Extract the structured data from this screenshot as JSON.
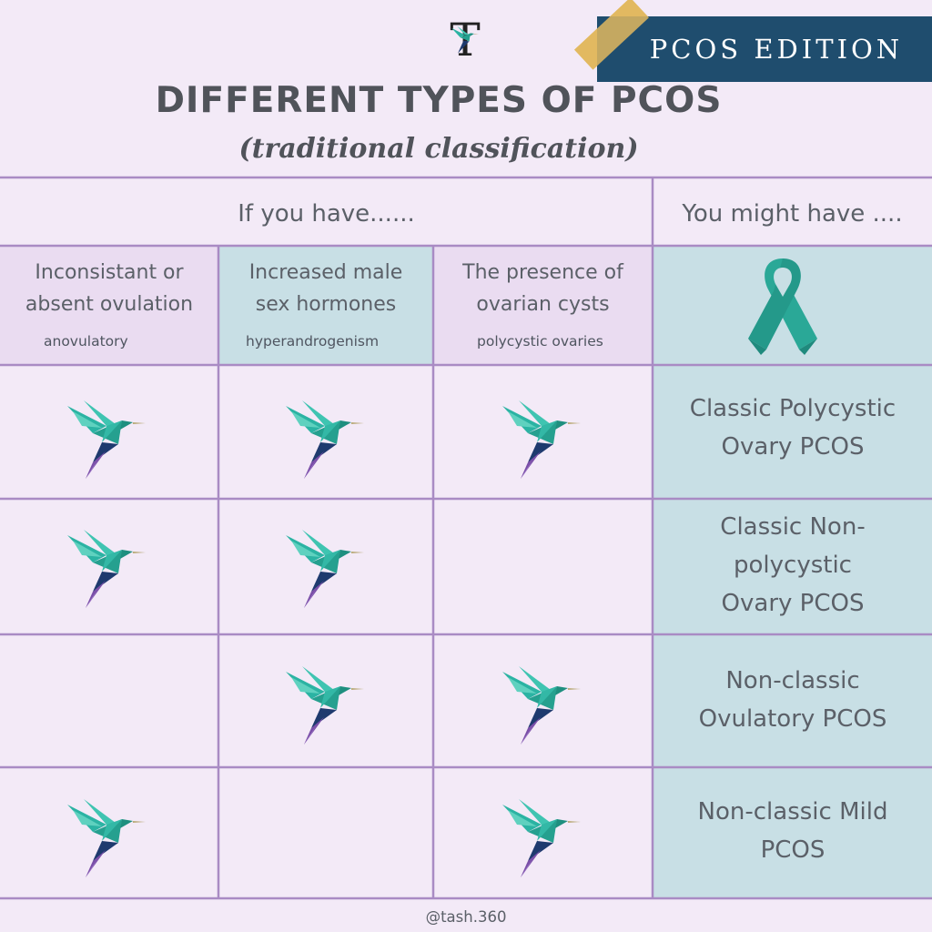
{
  "header": {
    "logo_letter": "T",
    "badge": "PCOS EDITION",
    "title": "DIFFERENT TYPES OF PCOS",
    "subtitle": "(traditional classification)"
  },
  "table": {
    "left_header": "If you have......",
    "right_header": "You might have ....",
    "columns": [
      {
        "line1": "Inconsistant or",
        "line2": "absent ovulation",
        "sub": "anovulatory"
      },
      {
        "line1": "Increased male",
        "line2": "sex hormones",
        "sub": "hyperandrogenism"
      },
      {
        "line1": "The presence of",
        "line2": "ovarian cysts",
        "sub": "polycystic ovaries"
      }
    ],
    "ribbon_icon": "awareness-ribbon-icon",
    "bird_icon": "hummingbird-icon",
    "rows": [
      {
        "marks": [
          true,
          true,
          true
        ],
        "result_lines": [
          "Classic Polycystic",
          "Ovary PCOS"
        ]
      },
      {
        "marks": [
          true,
          true,
          false
        ],
        "result_lines": [
          "Classic Non-",
          "polycystic",
          "Ovary PCOS"
        ]
      },
      {
        "marks": [
          false,
          true,
          true
        ],
        "result_lines": [
          "Non-classic",
          "Ovulatory PCOS"
        ]
      },
      {
        "marks": [
          true,
          false,
          true
        ],
        "result_lines": [
          "Non-classic Mild",
          "PCOS"
        ]
      }
    ]
  },
  "footer": {
    "handle": "@tash.360"
  },
  "colors": {
    "background": "#f3eaf7",
    "grid_line": "#a98bc4",
    "badge": "#1f4d6e",
    "header_purple": "#eadcf1",
    "result_blue": "#c8dfe5",
    "ribbon": "#2aa897",
    "bird_teal": "#2bb3a3"
  }
}
